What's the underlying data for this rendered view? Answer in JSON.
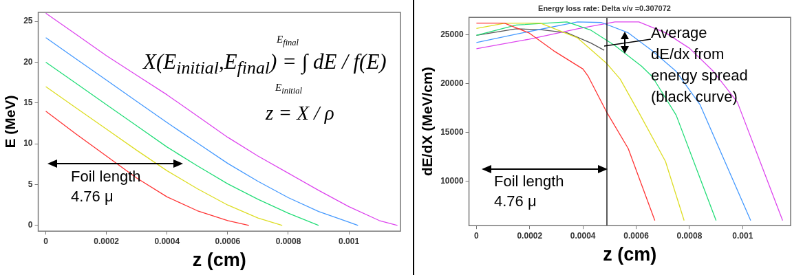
{
  "chart_data": [
    {
      "type": "line",
      "xlabel": "z (cm)",
      "ylabel": "E (MeV)",
      "xlim": [
        -2.5e-05,
        0.00117
      ],
      "ylim": [
        -0.7,
        26.1
      ],
      "xticks": [
        0,
        0.0002,
        0.0004,
        0.0006,
        0.0008,
        0.001
      ],
      "yticks": [
        0,
        5,
        10,
        15,
        20,
        25
      ],
      "grid": false,
      "legend": false,
      "series": [
        {
          "color": "#ff3333",
          "x": [
            0,
            0.0001,
            0.0002,
            0.0003,
            0.0004,
            0.0005,
            0.0006,
            0.00067
          ],
          "values": [
            14,
            11.2,
            8.5,
            5.8,
            3.5,
            1.8,
            0.6,
            0
          ]
        },
        {
          "color": "#dddd22",
          "x": [
            0,
            0.0001,
            0.0002,
            0.0003,
            0.0004,
            0.0005,
            0.0006,
            0.0007,
            0.00078
          ],
          "values": [
            17,
            14.4,
            11.8,
            9.2,
            6.7,
            4.5,
            2.5,
            0.9,
            0
          ]
        },
        {
          "color": "#22dd77",
          "x": [
            0,
            0.0001,
            0.0002,
            0.0003,
            0.0004,
            0.0005,
            0.0006,
            0.0007,
            0.0008,
            0.0009
          ],
          "values": [
            20,
            17.4,
            14.8,
            12.2,
            9.6,
            7.3,
            5.1,
            3.2,
            1.5,
            0
          ]
        },
        {
          "color": "#4499ff",
          "x": [
            0,
            0.0001,
            0.0002,
            0.0003,
            0.0004,
            0.0005,
            0.0006,
            0.0007,
            0.0008,
            0.0009,
            0.001,
            0.00103
          ],
          "values": [
            23,
            20.4,
            17.8,
            15.2,
            12.6,
            10.1,
            7.6,
            5.4,
            3.4,
            1.7,
            0.4,
            0
          ]
        },
        {
          "color": "#dd44ee",
          "x": [
            0,
            0.0001,
            0.0002,
            0.0003,
            0.0004,
            0.0005,
            0.0006,
            0.0007,
            0.0008,
            0.0009,
            0.001,
            0.0011,
            0.00116
          ],
          "values": [
            26,
            23.4,
            20.8,
            18.4,
            16,
            13.4,
            10.8,
            8.5,
            6.4,
            4.3,
            2.3,
            0.6,
            0
          ]
        }
      ],
      "annotations": [
        "E$_{final}$",
        "X(E$_{initial}$,E$_{final}$) = ∫ dE / f(E)",
        "E$_{initial}$",
        "z = X / ρ",
        "Foil length\n4.76 μ"
      ]
    },
    {
      "type": "line",
      "title": "Energy loss rate: Delta v/v =0.307072",
      "xlabel": "z (cm)",
      "ylabel": "dE/dX (MeV/cm)",
      "xlim": [
        -2.8e-05,
        0.00118
      ],
      "ylim": [
        5480,
        26790
      ],
      "xticks": [
        0,
        0.0002,
        0.0004,
        0.0006,
        0.0008,
        0.001
      ],
      "yticks": [
        10000,
        15000,
        20000,
        25000
      ],
      "grid": false,
      "legend": false,
      "series": [
        {
          "color": "#ff3333",
          "x": [
            0,
            0.000105,
            0.000197,
            0.00029,
            0.0004,
            0.00042,
            0.00049,
            0.00057,
            0.00067
          ],
          "values": [
            26200,
            26200,
            25200,
            23370,
            21500,
            20740,
            17050,
            13370,
            6000
          ]
        },
        {
          "color": "#dddd22",
          "x": [
            0,
            0.000105,
            0.00024,
            0.00038,
            0.00049,
            0.00054,
            0.00061,
            0.00071,
            0.00078
          ],
          "values": [
            25660,
            26180,
            26200,
            24680,
            22050,
            20470,
            17050,
            12050,
            6000
          ]
        },
        {
          "color": "#22dd77",
          "x": [
            0,
            0.00015,
            0.00034,
            0.00043,
            0.00052,
            0.00062,
            0.00066,
            0.00075,
            0.0009
          ],
          "values": [
            24950,
            26000,
            26320,
            25470,
            23900,
            21790,
            20740,
            16790,
            6000
          ]
        },
        {
          "color": "#4499ff",
          "x": [
            0,
            0.00015,
            0.00038,
            0.00047,
            0.00057,
            0.00066,
            0.00075,
            0.00084,
            0.00103
          ],
          "values": [
            24210,
            25080,
            26320,
            26260,
            25210,
            23370,
            21260,
            17840,
            6000
          ]
        },
        {
          "color": "#dd44ee",
          "x": [
            0,
            0.000197,
            0.00038,
            0.00052,
            0.00061,
            0.00071,
            0.0008,
            0.00089,
            0.00098,
            0.00115
          ],
          "values": [
            23580,
            24550,
            25610,
            26320,
            26320,
            25210,
            23630,
            21260,
            18110,
            6000
          ]
        },
        {
          "color": "#555555",
          "x": [
            0,
            0.00015,
            0.00024,
            0.00034,
            0.00043,
            0.00048
          ],
          "values": [
            24950,
            25610,
            25530,
            25210,
            24160,
            23420
          ]
        }
      ],
      "ref_lines": [
        {
          "axis": "x",
          "value": 0.00049,
          "color": "#000000"
        }
      ],
      "annotations": [
        "Average\ndE/dx from\nenergy spread\n(black curve)",
        "Foil length\n4.76 μ"
      ]
    }
  ]
}
